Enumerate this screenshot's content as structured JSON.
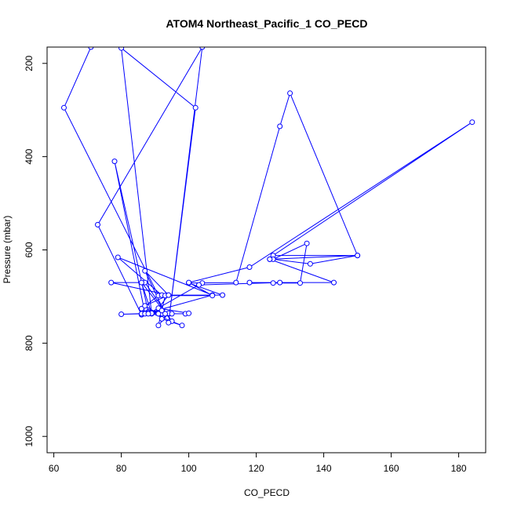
{
  "chart_data": {
    "type": "line",
    "title": "ATOM4 Northeast_Pacific_1 CO_PECD",
    "xlabel": "CO_PECD",
    "ylabel": "Pressure (mbar)",
    "xlim": [
      58,
      188
    ],
    "ylim": [
      1035,
      165
    ],
    "y_reversed": true,
    "x_ticks": [
      60,
      80,
      100,
      120,
      140,
      160,
      180
    ],
    "y_ticks": [
      200,
      400,
      600,
      800,
      1000
    ],
    "grid": false,
    "legend": "none",
    "color": "#0000ff",
    "series": [
      {
        "x": [
          71,
          63,
          91,
          86,
          87,
          78,
          88,
          94,
          92,
          98,
          89,
          88,
          92,
          99,
          100,
          91,
          94,
          77,
          87,
          95,
          86,
          89,
          80,
          102,
          94,
          104,
          73,
          86,
          107,
          79,
          92,
          110,
          100,
          114,
          127,
          130,
          150,
          125,
          184,
          118,
          100,
          107,
          93,
          91,
          94,
          92,
          86,
          93,
          87,
          94,
          87,
          91,
          89,
          80,
          87,
          95,
          89,
          88,
          104,
          103,
          127,
          125,
          133,
          135,
          125,
          136,
          150,
          124,
          124,
          143,
          118
        ],
        "y": [
          165,
          295,
          698,
          726,
          736,
          410,
          733,
          737,
          748,
          762,
          736,
          735,
          737,
          737,
          736,
          725,
          697,
          670,
          670,
          753,
          670,
          737,
          167,
          295,
          756,
          165,
          546,
          739,
          697,
          616,
          697,
          697,
          671,
          670,
          335,
          264,
          612,
          612,
          326,
          637,
          670,
          698,
          698,
          762,
          736,
          730,
          737,
          737,
          645,
          697,
          720,
          737,
          736,
          738,
          737,
          737,
          736,
          737,
          671,
          675,
          670,
          671,
          671,
          586,
          620,
          630,
          612,
          620,
          620,
          670,
          670
        ]
      }
    ]
  }
}
